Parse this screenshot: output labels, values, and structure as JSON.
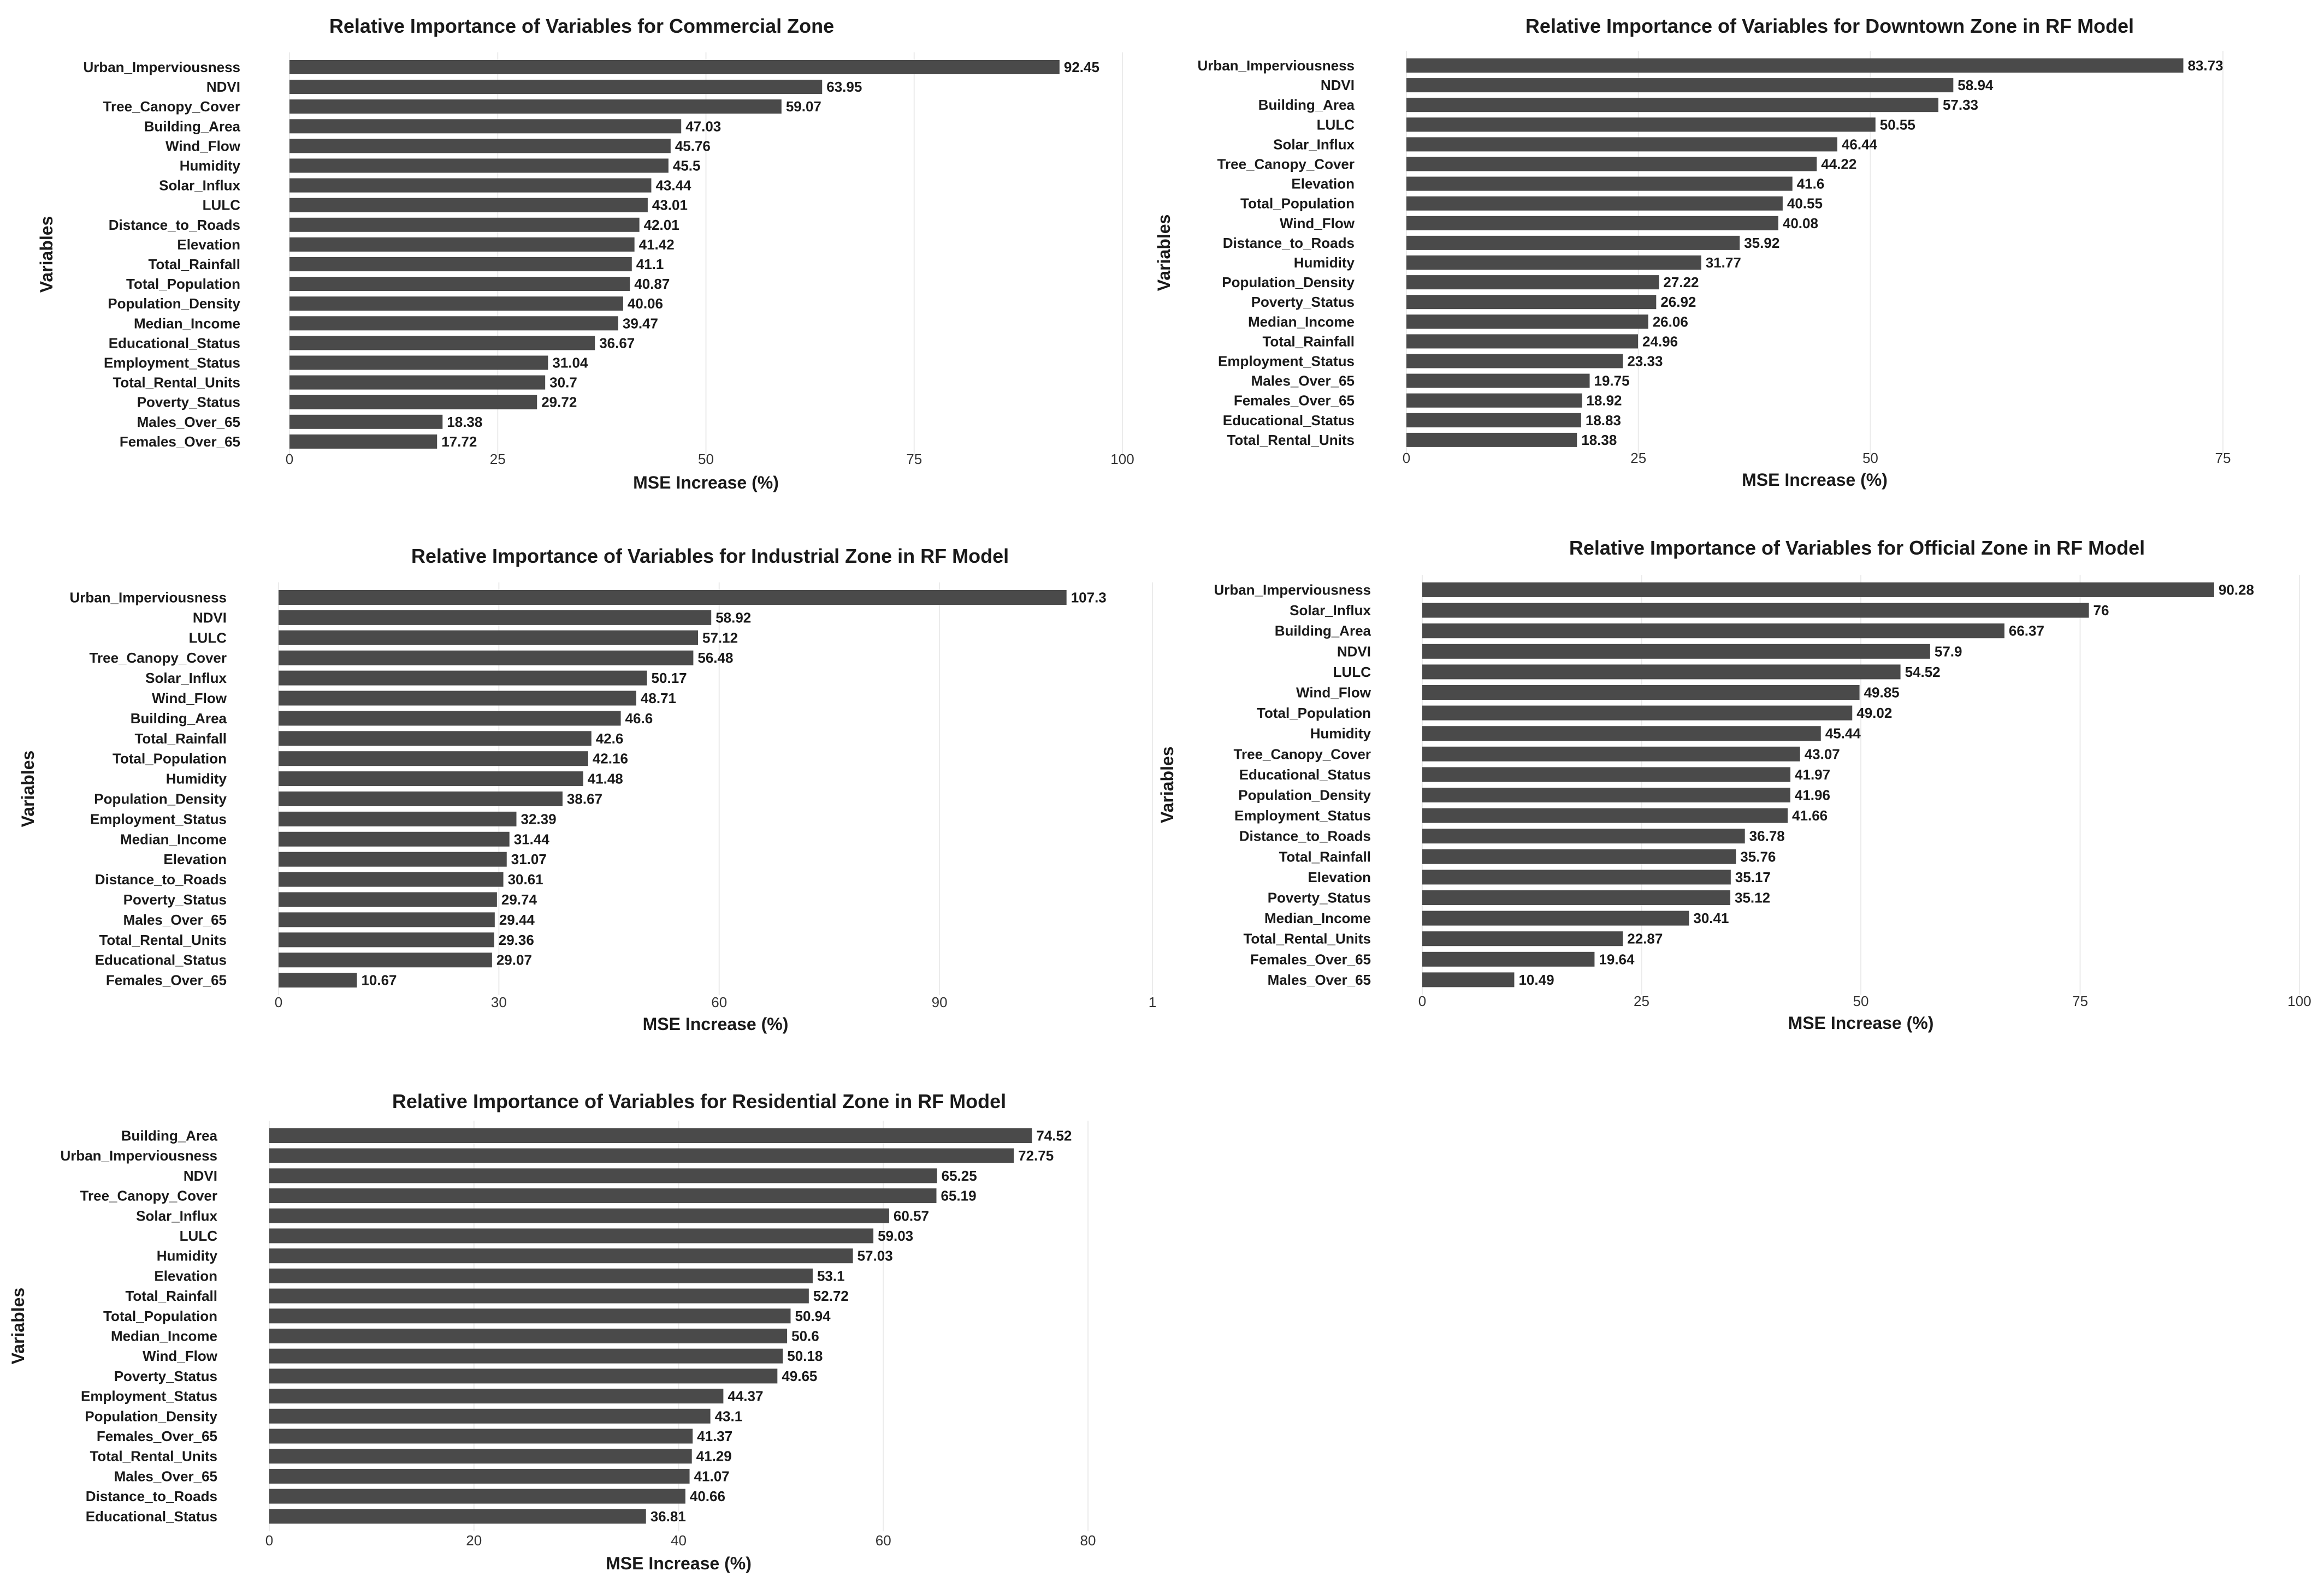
{
  "chart_data": [
    {
      "type": "bar",
      "orientation": "horizontal",
      "title": "Relative Importance of Variables for Commercial Zone",
      "xlabel": "MSE Increase (%)",
      "ylabel": "Variables",
      "xlim": [
        0,
        100
      ],
      "xticks": [
        "0",
        "25",
        "50",
        "75",
        "100"
      ],
      "grid": true,
      "categories": [
        "Urban_Imperviousness",
        "NDVI",
        "Tree_Canopy_Cover",
        "Building_Area",
        "Wind_Flow",
        "Humidity",
        "Solar_Influx",
        "LULC",
        "Distance_to_Roads",
        "Elevation",
        "Total_Rainfall",
        "Total_Population",
        "Population_Density",
        "Median_Income",
        "Educational_Status",
        "Employment_Status",
        "Total_Rental_Units",
        "Poverty_Status",
        "Males_Over_65",
        "Females_Over_65"
      ],
      "values": [
        92.45,
        63.95,
        59.07,
        47.03,
        45.76,
        45.5,
        43.44,
        43.01,
        42.01,
        41.42,
        41.1,
        40.87,
        40.06,
        39.47,
        36.67,
        31.04,
        30.7,
        29.72,
        18.38,
        17.72
      ],
      "value_labels": [
        "92.45",
        "63.95",
        "59.07",
        "47.03",
        "45.76",
        "45.5",
        "43.44",
        "43.01",
        "42.01",
        "41.42",
        "41.1",
        "40.87",
        "40.06",
        "39.47",
        "36.67",
        "31.04",
        "30.7",
        "29.72",
        "18.38",
        "17.72"
      ]
    },
    {
      "type": "bar",
      "orientation": "horizontal",
      "title": "Relative Importance of Variables for Downtown Zone in RF Model",
      "xlabel": "MSE Increase (%)",
      "ylabel": "Variables",
      "xlim": [
        0,
        88
      ],
      "xticks": [
        "0",
        "25",
        "50",
        "75"
      ],
      "grid": true,
      "categories": [
        "Urban_Imperviousness",
        "NDVI",
        "Building_Area",
        "LULC",
        "Solar_Influx",
        "Tree_Canopy_Cover",
        "Elevation",
        "Total_Population",
        "Wind_Flow",
        "Distance_to_Roads",
        "Humidity",
        "Population_Density",
        "Poverty_Status",
        "Median_Income",
        "Total_Rainfall",
        "Employment_Status",
        "Males_Over_65",
        "Females_Over_65",
        "Educational_Status",
        "Total_Rental_Units"
      ],
      "values": [
        83.73,
        58.94,
        57.33,
        50.55,
        46.44,
        44.22,
        41.6,
        40.55,
        40.08,
        35.92,
        31.77,
        27.22,
        26.92,
        26.06,
        24.96,
        23.33,
        19.75,
        18.92,
        18.83,
        18.38
      ],
      "value_labels": [
        "83.73",
        "58.94",
        "57.33",
        "50.55",
        "46.44",
        "44.22",
        "41.6",
        "40.55",
        "40.08",
        "35.92",
        "31.77",
        "27.22",
        "26.92",
        "26.06",
        "24.96",
        "23.33",
        "19.75",
        "18.92",
        "18.83",
        "18.38"
      ]
    },
    {
      "type": "bar",
      "orientation": "horizontal",
      "title": "Relative Importance of Variables for Industrial Zone in RF Model",
      "xlabel": "MSE Increase (%)",
      "ylabel": "Variables",
      "xlim": [
        0,
        119
      ],
      "xticks": [
        "0",
        "30",
        "60",
        "90",
        "1"
      ],
      "grid": true,
      "categories": [
        "Urban_Imperviousness",
        "NDVI",
        "LULC",
        "Tree_Canopy_Cover",
        "Solar_Influx",
        "Wind_Flow",
        "Building_Area",
        "Total_Rainfall",
        "Total_Population",
        "Humidity",
        "Population_Density",
        "Employment_Status",
        "Median_Income",
        "Elevation",
        "Distance_to_Roads",
        "Poverty_Status",
        "Males_Over_65",
        "Total_Rental_Units",
        "Educational_Status",
        "Females_Over_65"
      ],
      "values": [
        107.3,
        58.92,
        57.12,
        56.48,
        50.17,
        48.71,
        46.6,
        42.6,
        42.16,
        41.48,
        38.67,
        32.39,
        31.44,
        31.07,
        30.61,
        29.74,
        29.44,
        29.36,
        29.07,
        10.67
      ],
      "value_labels": [
        "107.3",
        "58.92",
        "57.12",
        "56.48",
        "50.17",
        "48.71",
        "46.6",
        "42.6",
        "42.16",
        "41.48",
        "38.67",
        "32.39",
        "31.44",
        "31.07",
        "30.61",
        "29.74",
        "29.44",
        "29.36",
        "29.07",
        "10.67"
      ]
    },
    {
      "type": "bar",
      "orientation": "horizontal",
      "title": "Relative Importance of Variables for Official Zone in RF Model",
      "xlabel": "MSE Increase (%)",
      "ylabel": "Variables",
      "xlim": [
        0,
        100
      ],
      "xticks": [
        "0",
        "25",
        "50",
        "75",
        "100"
      ],
      "grid": true,
      "categories": [
        "Urban_Imperviousness",
        "Solar_Influx",
        "Building_Area",
        "NDVI",
        "LULC",
        "Wind_Flow",
        "Total_Population",
        "Humidity",
        "Tree_Canopy_Cover",
        "Educational_Status",
        "Population_Density",
        "Employment_Status",
        "Distance_to_Roads",
        "Total_Rainfall",
        "Elevation",
        "Poverty_Status",
        "Median_Income",
        "Total_Rental_Units",
        "Females_Over_65",
        "Males_Over_65"
      ],
      "values": [
        90.28,
        76,
        66.37,
        57.9,
        54.52,
        49.85,
        49.02,
        45.44,
        43.07,
        41.97,
        41.96,
        41.66,
        36.78,
        35.76,
        35.17,
        35.12,
        30.41,
        22.87,
        19.64,
        10.49
      ],
      "value_labels": [
        "90.28",
        "76",
        "66.37",
        "57.9",
        "54.52",
        "49.85",
        "49.02",
        "45.44",
        "43.07",
        "41.97",
        "41.96",
        "41.66",
        "36.78",
        "35.76",
        "35.17",
        "35.12",
        "30.41",
        "22.87",
        "19.64",
        "10.49"
      ]
    },
    {
      "type": "bar",
      "orientation": "horizontal",
      "title": "Relative Importance of Variables for Residential Zone in RF Model",
      "xlabel": "MSE Increase (%)",
      "ylabel": "Variables",
      "xlim": [
        0,
        80
      ],
      "xticks": [
        "0",
        "20",
        "40",
        "60",
        "80"
      ],
      "grid": true,
      "categories": [
        "Building_Area",
        "Urban_Imperviousness",
        "NDVI",
        "Tree_Canopy_Cover",
        "Solar_Influx",
        "LULC",
        "Humidity",
        "Elevation",
        "Total_Rainfall",
        "Total_Population",
        "Median_Income",
        "Wind_Flow",
        "Poverty_Status",
        "Employment_Status",
        "Population_Density",
        "Females_Over_65",
        "Total_Rental_Units",
        "Males_Over_65",
        "Distance_to_Roads",
        "Educational_Status"
      ],
      "values": [
        74.52,
        72.75,
        65.25,
        65.19,
        60.57,
        59.03,
        57.03,
        53.1,
        52.72,
        50.94,
        50.6,
        50.18,
        49.65,
        44.37,
        43.1,
        41.37,
        41.29,
        41.07,
        40.66,
        36.81
      ],
      "value_labels": [
        "74.52",
        "72.75",
        "65.25",
        "65.19",
        "60.57",
        "59.03",
        "57.03",
        "53.1",
        "52.72",
        "50.94",
        "50.6",
        "50.18",
        "49.65",
        "44.37",
        "43.1",
        "41.37",
        "41.29",
        "41.07",
        "40.66",
        "36.81"
      ]
    }
  ]
}
